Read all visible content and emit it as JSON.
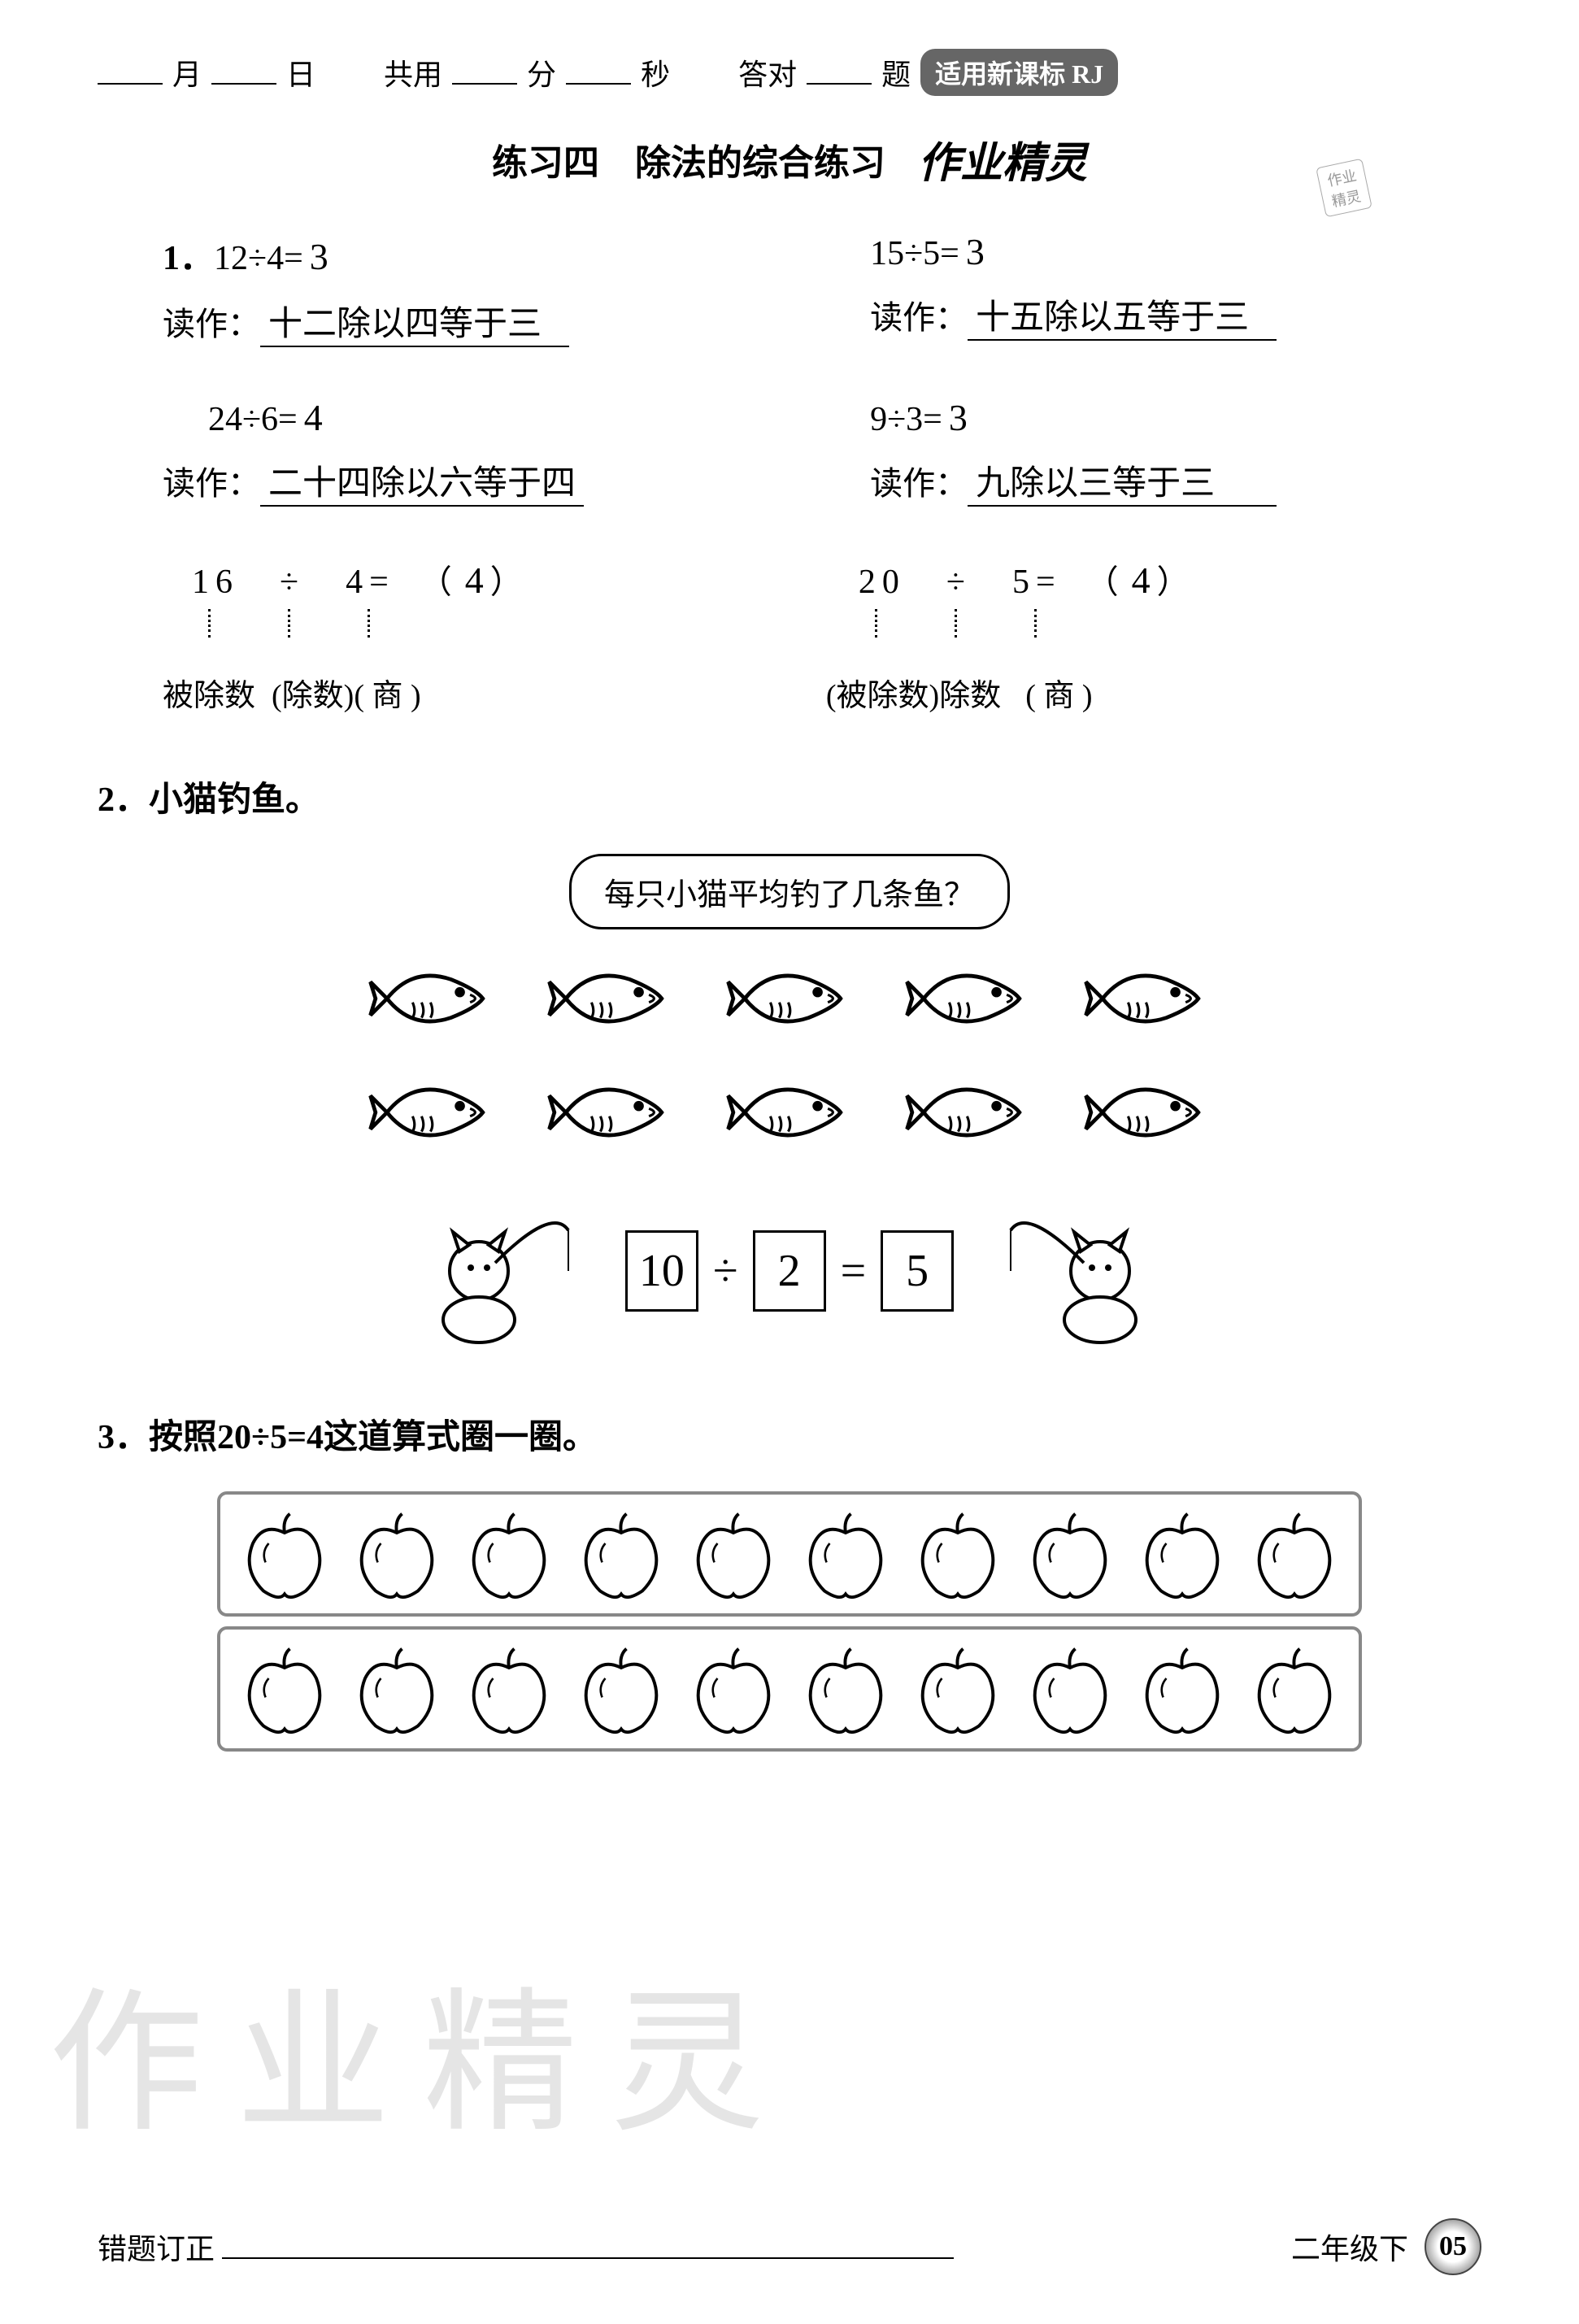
{
  "colors": {
    "text": "#000000",
    "bg": "#ffffff",
    "badge_bg": "#666666",
    "badge_text": "#ffffff",
    "watermark": "rgba(150,150,150,0.25)",
    "apple_border": "#888888"
  },
  "header": {
    "month": "月",
    "day": "日",
    "total_label": "共用",
    "min": "分",
    "sec": "秒",
    "correct_label": "答对",
    "ti": "题",
    "badge": "适用新课标 RJ"
  },
  "title": {
    "main": "练习四　除法的综合练习",
    "watermark": "作业精灵"
  },
  "stamp": {
    "line1": "作业",
    "line2": "精灵"
  },
  "q1": {
    "num": "1．",
    "items": [
      {
        "eq": "12÷4=",
        "ans": "3",
        "read_label": "读作：",
        "read_ans": "十二除以四等于三"
      },
      {
        "eq": "15÷5=",
        "ans": "3",
        "read_label": "读作：",
        "read_ans": "十五除以五等于三"
      },
      {
        "eq": "24÷6=",
        "ans": "4",
        "read_label": "读作：",
        "read_ans": "二十四除以六等于四"
      },
      {
        "eq": "9÷3=",
        "ans": "3",
        "read_label": "读作：",
        "read_ans": "九除以三等于三"
      }
    ],
    "terms": [
      {
        "eq_parts": [
          "16",
          "÷",
          "4",
          "="
        ],
        "ans": "4",
        "labels": [
          "被除数",
          "(除数)",
          "( 商 )"
        ],
        "label_printed_idx": 0
      },
      {
        "eq_parts": [
          "20",
          "÷",
          "5",
          "="
        ],
        "ans": "4",
        "labels": [
          "(被除数)",
          "除数",
          "( 商 )"
        ],
        "label_printed_idx": 1
      }
    ]
  },
  "q2": {
    "num": "2．",
    "title": "小猫钓鱼。",
    "bubble": "每只小猫平均钓了几条鱼？",
    "fish_rows": [
      5,
      5
    ],
    "fish_style": {
      "stroke": "#000000",
      "fill": "#ffffff",
      "stroke_width": 3
    },
    "cat_count": 2,
    "equation": {
      "a": "10",
      "op": "÷",
      "b": "2",
      "eq": "=",
      "c": "5"
    }
  },
  "q3": {
    "num": "3．",
    "title": "按照20÷5=4这道算式圈一圈。",
    "apple_rows": [
      10,
      10
    ],
    "apple_style": {
      "stroke": "#000000",
      "fill": "#ffffff",
      "stroke_width": 3
    }
  },
  "footer": {
    "err_label": "错题订正",
    "grade": "二年级下",
    "page": "05"
  },
  "watermark_big": "作业精灵"
}
